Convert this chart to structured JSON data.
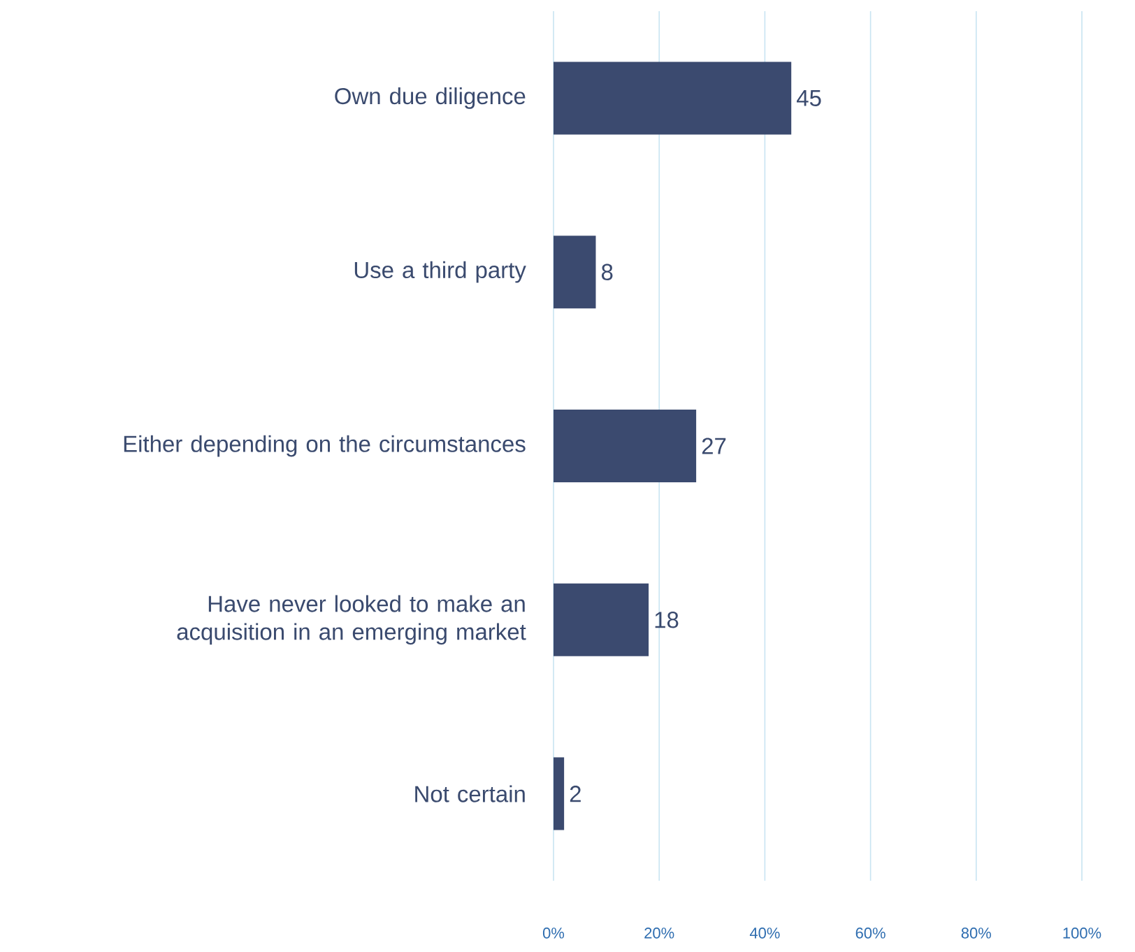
{
  "chart_data": {
    "type": "bar",
    "orientation": "horizontal",
    "categories": [
      "Own due diligence",
      "Use a third party",
      "Either depending on the circumstances",
      "Have never looked to make an acquisition in an emerging market",
      "Not certain"
    ],
    "values": [
      45,
      8,
      27,
      18,
      2
    ],
    "color": "#3b4a6f",
    "xlim": [
      0,
      100
    ],
    "xticks": [
      {
        "value": 0,
        "label": "0%"
      },
      {
        "value": 20,
        "label": "20%"
      },
      {
        "value": 40,
        "label": "40%"
      },
      {
        "value": 60,
        "label": "60%"
      },
      {
        "value": 80,
        "label": "80%"
      },
      {
        "value": 100,
        "label": "100%"
      }
    ],
    "grid": "x",
    "data_labels": true
  }
}
